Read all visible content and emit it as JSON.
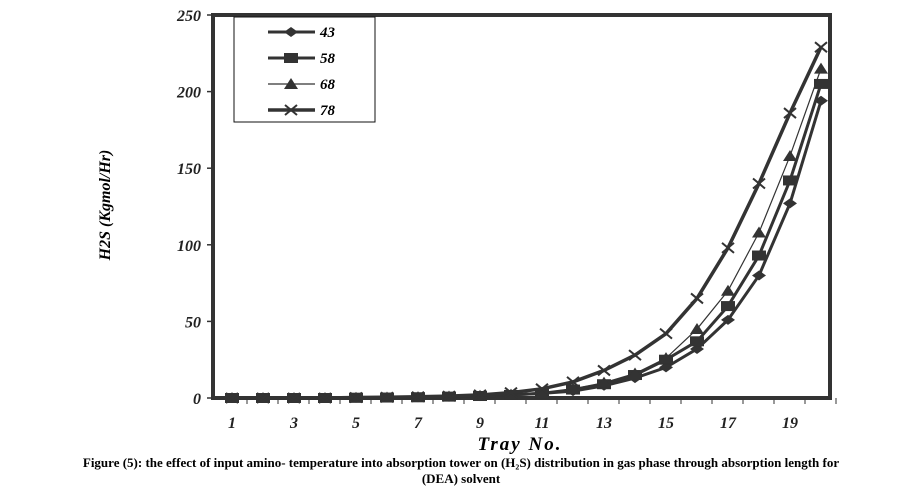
{
  "chart_data": {
    "type": "line",
    "title": "",
    "xlabel": "Tray No.",
    "ylabel": "H2S (Kgmol/Hr)",
    "ylim": [
      0,
      250
    ],
    "yticks": [
      "0",
      "50",
      "100",
      "150",
      "200",
      "250"
    ],
    "xticks": [
      "1",
      "3",
      "5",
      "7",
      "9",
      "11",
      "13",
      "15",
      "17",
      "19"
    ],
    "x": [
      1,
      2,
      3,
      4,
      5,
      6,
      7,
      8,
      9,
      10,
      11,
      12,
      13,
      14,
      15,
      16,
      17,
      18,
      19,
      20
    ],
    "legend_position": "top-left",
    "series": [
      {
        "name": "43",
        "marker": "diamond",
        "values": [
          0,
          0,
          0,
          0,
          0.2,
          0.3,
          0.5,
          0.8,
          1.2,
          2,
          3,
          4.5,
          8,
          13,
          20,
          32,
          51,
          80,
          127,
          194
        ]
      },
      {
        "name": "58",
        "marker": "square",
        "values": [
          0,
          0,
          0,
          0,
          0.2,
          0.3,
          0.5,
          0.9,
          1.3,
          2,
          3,
          5.5,
          9,
          15,
          25,
          37,
          60,
          93,
          142,
          205
        ]
      },
      {
        "name": "68",
        "marker": "triangle",
        "values": [
          0,
          0,
          0,
          0,
          0.2,
          0.3,
          0.6,
          1,
          1.5,
          2.2,
          3.2,
          6,
          10,
          16,
          26,
          45,
          70,
          108,
          158,
          215
        ]
      },
      {
        "name": "78",
        "marker": "x",
        "values": [
          0,
          0,
          0,
          0,
          0.3,
          0.5,
          0.8,
          1.2,
          2,
          3.5,
          6,
          10.5,
          18,
          28,
          42,
          65,
          98,
          140,
          186,
          229
        ]
      }
    ]
  },
  "caption": {
    "line1": "Figure (5): the effect of input amino- temperature into absorption tower on (H₂S) distribution in gas phase through absorption length for",
    "line2": "(DEA) solvent"
  }
}
